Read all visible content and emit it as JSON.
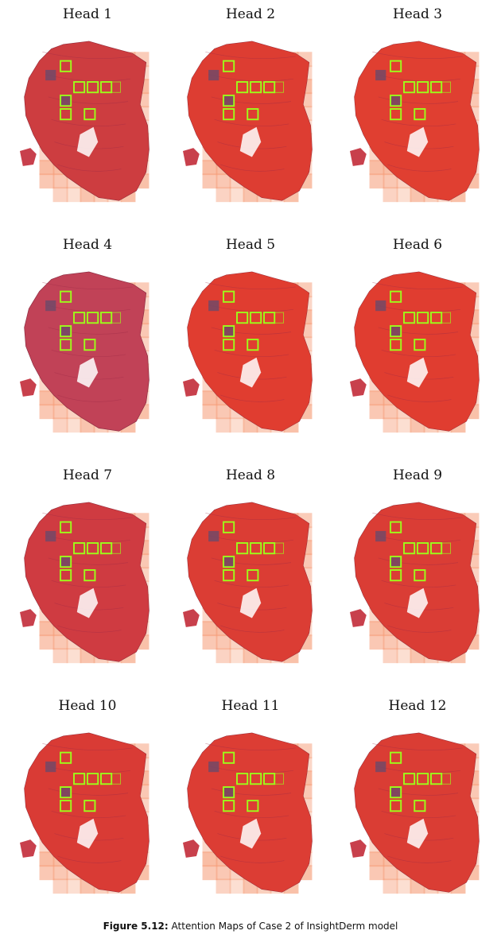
{
  "heads": [
    {
      "title": "Head 1",
      "tint": "#d23a36",
      "attention": 0.55
    },
    {
      "title": "Head 2",
      "tint": "#e23c2c",
      "attention": 0.8
    },
    {
      "title": "Head 3",
      "tint": "#e5402c",
      "attention": 0.82
    },
    {
      "title": "Head 4",
      "tint": "#b44a72",
      "attention": 0.3
    },
    {
      "title": "Head 5",
      "tint": "#e43d2b",
      "attention": 0.85
    },
    {
      "title": "Head 6",
      "tint": "#e43d2b",
      "attention": 0.85
    },
    {
      "title": "Head 7",
      "tint": "#d3393b",
      "attention": 0.6
    },
    {
      "title": "Head 8",
      "tint": "#e03c2e",
      "attention": 0.78
    },
    {
      "title": "Head 9",
      "tint": "#e03c2e",
      "attention": 0.76
    },
    {
      "title": "Head 10",
      "tint": "#df3a2e",
      "attention": 0.75
    },
    {
      "title": "Head 11",
      "tint": "#e13c2e",
      "attention": 0.78
    },
    {
      "title": "Head 12",
      "tint": "#e03c2e",
      "attention": 0.77
    }
  ],
  "colors": {
    "highlight_box": "#9cff1a",
    "dark_patch": "#6b4a6a",
    "tissue_base": "#c8404c",
    "halo": "#f6a27f"
  },
  "caption": {
    "label": "Figure 5.12:",
    "text": "Attention Maps of Case 2 of InsightDerm model"
  }
}
